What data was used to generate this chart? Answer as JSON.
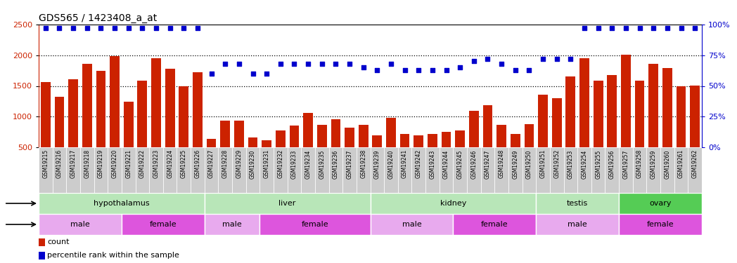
{
  "title": "GDS565 / 1423408_a_at",
  "samples": [
    "GSM19215",
    "GSM19216",
    "GSM19217",
    "GSM19218",
    "GSM19219",
    "GSM19220",
    "GSM19221",
    "GSM19222",
    "GSM19223",
    "GSM19224",
    "GSM19225",
    "GSM19226",
    "GSM19227",
    "GSM19228",
    "GSM19229",
    "GSM19230",
    "GSM19231",
    "GSM19232",
    "GSM19233",
    "GSM19234",
    "GSM19235",
    "GSM19236",
    "GSM19237",
    "GSM19238",
    "GSM19239",
    "GSM19240",
    "GSM19241",
    "GSM19242",
    "GSM19243",
    "GSM19244",
    "GSM19245",
    "GSM19246",
    "GSM19247",
    "GSM19248",
    "GSM19249",
    "GSM19250",
    "GSM19251",
    "GSM19252",
    "GSM19253",
    "GSM19254",
    "GSM19255",
    "GSM19256",
    "GSM19257",
    "GSM19258",
    "GSM19259",
    "GSM19260",
    "GSM19261",
    "GSM19262"
  ],
  "counts": [
    1560,
    1320,
    1610,
    1860,
    1750,
    1990,
    1240,
    1590,
    1950,
    1780,
    1490,
    1720,
    640,
    940,
    930,
    660,
    620,
    780,
    860,
    1060,
    870,
    960,
    820,
    870,
    700,
    980,
    720,
    700,
    720,
    750,
    780,
    1090,
    1190,
    870,
    720,
    880,
    1360,
    1300,
    1650,
    1950,
    1590,
    1680,
    2010,
    1590,
    1860,
    1790,
    1500,
    1510
  ],
  "percentile": [
    97,
    97,
    97,
    97,
    97,
    97,
    97,
    97,
    97,
    97,
    97,
    97,
    60,
    68,
    68,
    60,
    60,
    68,
    68,
    68,
    68,
    68,
    68,
    65,
    63,
    68,
    63,
    63,
    63,
    63,
    65,
    70,
    72,
    68,
    63,
    63,
    72,
    72,
    72,
    97,
    97,
    97,
    97,
    97,
    97,
    97,
    97,
    97
  ],
  "bar_color": "#cc2200",
  "dot_color": "#0000cc",
  "tissue_groups": [
    {
      "label": "hypothalamus",
      "start": 0,
      "end": 11,
      "color": "#b8e6b8"
    },
    {
      "label": "liver",
      "start": 12,
      "end": 23,
      "color": "#b8e6b8"
    },
    {
      "label": "kidney",
      "start": 24,
      "end": 35,
      "color": "#b8e6b8"
    },
    {
      "label": "testis",
      "start": 36,
      "end": 41,
      "color": "#b8e6b8"
    },
    {
      "label": "ovary",
      "start": 42,
      "end": 47,
      "color": "#55cc55"
    }
  ],
  "gender_groups": [
    {
      "label": "male",
      "start": 0,
      "end": 5,
      "color": "#e8aaee"
    },
    {
      "label": "female",
      "start": 6,
      "end": 11,
      "color": "#dd55dd"
    },
    {
      "label": "male",
      "start": 12,
      "end": 15,
      "color": "#e8aaee"
    },
    {
      "label": "female",
      "start": 16,
      "end": 23,
      "color": "#dd55dd"
    },
    {
      "label": "male",
      "start": 24,
      "end": 29,
      "color": "#e8aaee"
    },
    {
      "label": "female",
      "start": 30,
      "end": 35,
      "color": "#dd55dd"
    },
    {
      "label": "male",
      "start": 36,
      "end": 41,
      "color": "#e8aaee"
    },
    {
      "label": "female",
      "start": 42,
      "end": 47,
      "color": "#dd55dd"
    }
  ],
  "ylim": [
    500,
    2500
  ],
  "left_yticks": [
    500,
    1000,
    1500,
    2000,
    2500
  ],
  "right_yticks": [
    0,
    25,
    50,
    75,
    100
  ],
  "grid_values": [
    1000,
    1500,
    2000
  ]
}
